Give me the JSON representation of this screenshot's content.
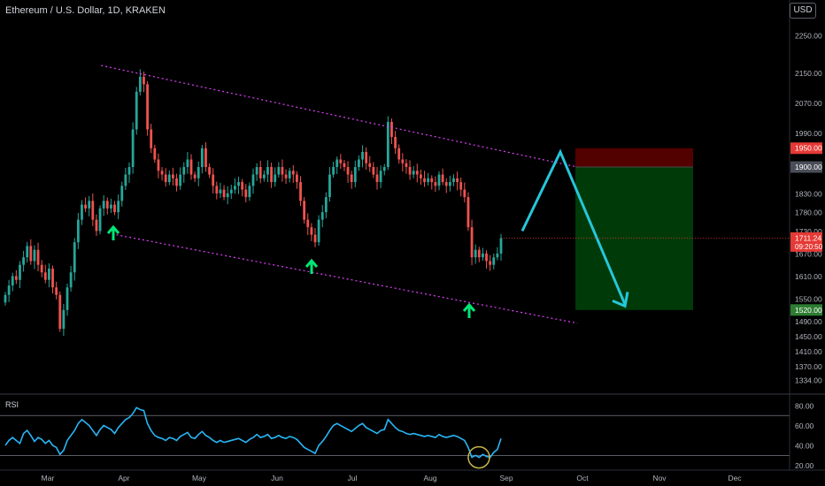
{
  "header": {
    "title": "Ethereum / U.S. Dollar, 1D, KRAKEN",
    "currency": "USD"
  },
  "colors": {
    "background": "#000000",
    "up_candle": "#26a69a",
    "down_candle": "#ef5350",
    "channel": "#e040fb",
    "arrow": "#26c6da",
    "pivot_arrow": "#00e676",
    "rsi_line": "#29b6f6",
    "stop_zone": "#5c0000",
    "target_zone": "#003d0a",
    "highlight_circle": "#c9b84a"
  },
  "rsi_pane": {
    "label": "RSI",
    "ticks": [
      "80.00",
      "60.00",
      "40.00",
      "20.00"
    ]
  },
  "chart_data": [
    {
      "type": "candlestick",
      "symbol": "Ethereum / U.S. Dollar",
      "interval": "1D",
      "exchange": "KRAKEN",
      "x_labels": [
        "Mar",
        "Apr",
        "May",
        "Jun",
        "Jul",
        "Aug",
        "Sep",
        "Oct",
        "Nov",
        "Dec"
      ],
      "y_ticks": [
        "2250.00",
        "2150.00",
        "2070.00",
        "1990.00",
        "1900.00",
        "1830.00",
        "1780.00",
        "1730.00",
        "1670.00",
        "1610.00",
        "1550.00",
        "1490.00",
        "1450.00",
        "1410.00",
        "1370.00",
        "1334.00"
      ],
      "price_labels": {
        "stop": "1950.00",
        "entry": "1900.00",
        "current": "1711.24",
        "countdown": "09:20:50",
        "target": "1520.00"
      },
      "close_series": [
        1560,
        1585,
        1610,
        1600,
        1640,
        1660,
        1690,
        1650,
        1680,
        1640,
        1620,
        1600,
        1630,
        1580,
        1560,
        1470,
        1520,
        1580,
        1620,
        1700,
        1760,
        1800,
        1790,
        1810,
        1760,
        1730,
        1790,
        1810,
        1790,
        1800,
        1780,
        1810,
        1850,
        1880,
        1900,
        2000,
        2100,
        2140,
        2120,
        2000,
        1950,
        1920,
        1890,
        1880,
        1860,
        1880,
        1870,
        1850,
        1880,
        1900,
        1920,
        1880,
        1870,
        1900,
        1950,
        1900,
        1880,
        1850,
        1830,
        1840,
        1820,
        1830,
        1840,
        1850,
        1860,
        1840,
        1820,
        1850,
        1880,
        1900,
        1870,
        1880,
        1900,
        1860,
        1880,
        1900,
        1880,
        1870,
        1890,
        1880,
        1860,
        1810,
        1760,
        1740,
        1720,
        1700,
        1760,
        1780,
        1820,
        1880,
        1900,
        1920,
        1910,
        1900,
        1880,
        1860,
        1900,
        1920,
        1940,
        1910,
        1900,
        1880,
        1860,
        1890,
        1900,
        2020,
        1980,
        1950,
        1920,
        1910,
        1900,
        1880,
        1890,
        1880,
        1870,
        1860,
        1870,
        1860,
        1850,
        1880,
        1860,
        1850,
        1860,
        1870,
        1860,
        1840,
        1820,
        1740,
        1660,
        1680,
        1660,
        1670,
        1650,
        1640,
        1660,
        1670,
        1711
      ],
      "channel_lines": [
        {
          "name": "",
          "points": [
            [
              "Mar 22",
              2170
            ],
            [
              "Sep 29",
              1900
            ]
          ]
        },
        {
          "name": "",
          "points": [
            [
              "Mar 28",
              1720
            ],
            [
              "Sep 29",
              1485
            ]
          ]
        }
      ],
      "projection_path": [
        1730,
        1940,
        1535
      ],
      "position": {
        "entry": 1900,
        "stop": 1950,
        "target": 1520
      }
    },
    {
      "type": "line",
      "name": "RSI",
      "ylim": [
        17,
        88
      ],
      "y_ticks": [
        80,
        60,
        40,
        20
      ],
      "bands": [
        70,
        30
      ],
      "values": [
        40,
        45,
        48,
        45,
        42,
        52,
        55,
        50,
        44,
        48,
        46,
        42,
        45,
        40,
        38,
        31,
        35,
        45,
        50,
        55,
        62,
        66,
        63,
        60,
        55,
        50,
        56,
        60,
        58,
        56,
        52,
        58,
        62,
        66,
        68,
        72,
        78,
        76,
        75,
        62,
        55,
        50,
        48,
        47,
        45,
        48,
        47,
        45,
        49,
        51,
        53,
        48,
        47,
        51,
        54,
        50,
        48,
        45,
        43,
        45,
        43,
        44,
        45,
        46,
        47,
        45,
        43,
        46,
        48,
        51,
        48,
        49,
        51,
        47,
        48,
        50,
        48,
        47,
        49,
        48,
        46,
        42,
        38,
        36,
        34,
        32,
        40,
        44,
        49,
        55,
        60,
        62,
        60,
        58,
        56,
        54,
        57,
        60,
        62,
        58,
        56,
        54,
        52,
        55,
        56,
        66,
        62,
        58,
        55,
        54,
        52,
        51,
        52,
        51,
        50,
        49,
        50,
        49,
        48,
        51,
        49,
        48,
        49,
        50,
        49,
        47,
        45,
        38,
        28,
        30,
        28,
        31,
        29,
        28,
        33,
        36,
        47
      ]
    }
  ]
}
